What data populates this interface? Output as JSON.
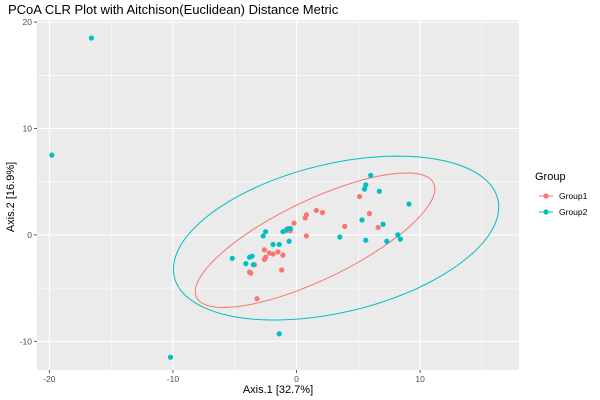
{
  "chart_data": {
    "type": "scatter",
    "title": "PCoA CLR Plot with Aitchison(Euclidean) Distance Metric",
    "xlabel": "Axis.1   [32.7%]",
    "ylabel": "Axis.2   [16.9%]",
    "xlim": [
      -21,
      18
    ],
    "ylim": [
      -12.7,
      20.2
    ],
    "x_ticks": [
      -20,
      -10,
      0,
      10
    ],
    "y_ticks": [
      -10,
      0,
      10,
      20
    ],
    "grid": true,
    "legend": {
      "title": "Group",
      "position": "right"
    },
    "series": [
      {
        "name": "Group1",
        "color": "#F8766D",
        "points": [
          [
            -3.8,
            -3.5
          ],
          [
            -3.7,
            -3.6
          ],
          [
            -3.4,
            -2.8
          ],
          [
            -2.5,
            -2.1
          ],
          [
            -2.6,
            -2.3
          ],
          [
            -2.6,
            -1.4
          ],
          [
            -2.2,
            -1.7
          ],
          [
            -1.9,
            -1.8
          ],
          [
            -1.5,
            -1.6
          ],
          [
            -1.1,
            -1.9
          ],
          [
            -1.2,
            -3.3
          ],
          [
            -0.8,
            0.4
          ],
          [
            -0.7,
            0.6
          ],
          [
            -0.5,
            0.4
          ],
          [
            -0.2,
            1.1
          ],
          [
            0.7,
            1.6
          ],
          [
            0.8,
            1.9
          ],
          [
            0.8,
            -0.1
          ],
          [
            1.6,
            2.3
          ],
          [
            2.1,
            2.1
          ],
          [
            3.9,
            0.8
          ],
          [
            5.1,
            3.6
          ],
          [
            5.9,
            2.0
          ],
          [
            6.6,
            0.7
          ],
          [
            -3.2,
            -6.0
          ]
        ]
      },
      {
        "name": "Group2",
        "color": "#00BFC4",
        "points": [
          [
            -16.6,
            18.5
          ],
          [
            -19.8,
            7.5
          ],
          [
            -10.2,
            -11.5
          ],
          [
            -1.4,
            -9.3
          ],
          [
            -5.2,
            -2.2
          ],
          [
            -4.1,
            -2.7
          ],
          [
            -3.8,
            -2.1
          ],
          [
            -3.6,
            -2.0
          ],
          [
            -3.5,
            -2.8
          ],
          [
            -2.7,
            -0.1
          ],
          [
            -2.5,
            0.3
          ],
          [
            -1.9,
            -0.9
          ],
          [
            -1.4,
            -0.9
          ],
          [
            -1.1,
            0.3
          ],
          [
            -0.8,
            0.5
          ],
          [
            -0.6,
            -0.6
          ],
          [
            -0.5,
            0.6
          ],
          [
            3.5,
            -0.2
          ],
          [
            5.3,
            1.4
          ],
          [
            5.5,
            4.3
          ],
          [
            5.6,
            4.7
          ],
          [
            6.0,
            5.6
          ],
          [
            6.7,
            4.1
          ],
          [
            7.0,
            1.0
          ],
          [
            7.3,
            -0.6
          ],
          [
            8.2,
            0.0
          ],
          [
            8.4,
            -0.4
          ],
          [
            9.1,
            2.9
          ],
          [
            5.6,
            -0.5
          ]
        ]
      }
    ],
    "ellipses": [
      {
        "series": "Group1",
        "center": [
          1.5,
          -0.5
        ],
        "semi_major": 11.0,
        "semi_minor": 3.6,
        "angle_deg": 30
      },
      {
        "series": "Group2",
        "center": [
          3.2,
          -0.3
        ],
        "semi_major": 13.6,
        "semi_minor": 6.9,
        "angle_deg": 17
      }
    ]
  }
}
